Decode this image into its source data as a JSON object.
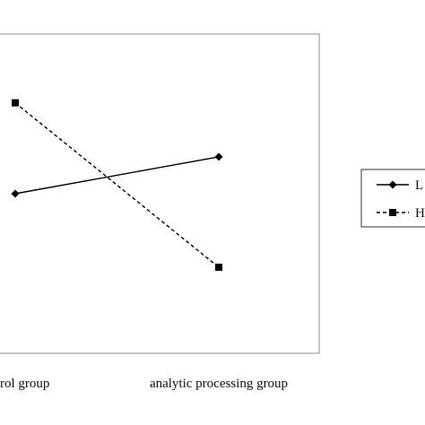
{
  "chart_data": {
    "type": "line",
    "categories": [
      "control group",
      "analytic processing group"
    ],
    "visible_tick_text": [
      "rol group",
      "analytic processing group"
    ],
    "series": [
      {
        "name": "L",
        "values": [
          0.35,
          0.5
        ],
        "marker": "diamond",
        "line_style": "solid",
        "color": "#000000"
      },
      {
        "name": "H",
        "values": [
          0.72,
          0.05
        ],
        "marker": "square",
        "line_style": "dashed",
        "color": "#000000"
      }
    ],
    "ylim": [
      -0.3,
      1.0
    ],
    "grid": false,
    "legend_position": "right"
  }
}
